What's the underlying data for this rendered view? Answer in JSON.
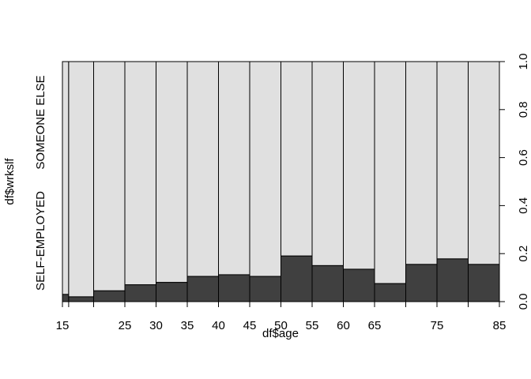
{
  "chart_data": {
    "type": "spineplot",
    "xlabel": "df$age",
    "ylabel": "df$wrkslf",
    "x_tick_labels": [
      "15",
      "25",
      "30",
      "35",
      "40",
      "45",
      "50",
      "55",
      "60",
      "65",
      "75",
      "85"
    ],
    "y_ticks": [
      "0.0",
      "0.2",
      "0.4",
      "0.6",
      "0.8",
      "1.0"
    ],
    "category_labels": [
      "SELF-EMPLOYED",
      "SOMEONE ELSE"
    ],
    "colors": {
      "self_employed": "#404040",
      "someone_else": "#e0e0e0",
      "border": "#000000"
    },
    "bins": [
      {
        "from": 15,
        "to": 16,
        "self_employed_share": 0.03
      },
      {
        "from": 16,
        "to": 20,
        "self_employed_share": 0.02
      },
      {
        "from": 20,
        "to": 25,
        "self_employed_share": 0.045
      },
      {
        "from": 25,
        "to": 30,
        "self_employed_share": 0.07
      },
      {
        "from": 30,
        "to": 35,
        "self_employed_share": 0.08
      },
      {
        "from": 35,
        "to": 40,
        "self_employed_share": 0.105
      },
      {
        "from": 40,
        "to": 45,
        "self_employed_share": 0.112
      },
      {
        "from": 45,
        "to": 50,
        "self_employed_share": 0.105
      },
      {
        "from": 50,
        "to": 55,
        "self_employed_share": 0.19
      },
      {
        "from": 55,
        "to": 60,
        "self_employed_share": 0.15
      },
      {
        "from": 60,
        "to": 65,
        "self_employed_share": 0.135
      },
      {
        "from": 65,
        "to": 70,
        "self_employed_share": 0.075
      },
      {
        "from": 70,
        "to": 75,
        "self_employed_share": 0.155
      },
      {
        "from": 75,
        "to": 80,
        "self_employed_share": 0.178
      },
      {
        "from": 80,
        "to": 85,
        "self_employed_share": 0.155
      }
    ]
  }
}
